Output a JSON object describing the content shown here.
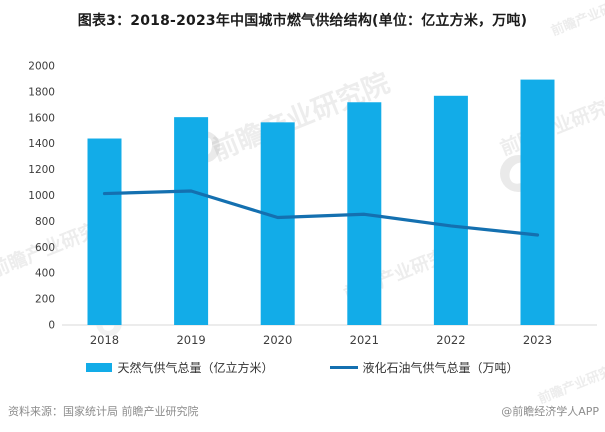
{
  "title": "图表3：2018-2023年中国城市燃气供给结构(单位：亿立方米，万吨)",
  "chart_data": {
    "type": "bar",
    "subtype": "bar-line-combo",
    "categories": [
      "2018",
      "2019",
      "2020",
      "2021",
      "2022",
      "2023"
    ],
    "series": [
      {
        "name": "天然气供气总量（亿立方米）",
        "kind": "bar",
        "color": "#12ACE8",
        "values": [
          1440,
          1605,
          1565,
          1720,
          1770,
          1895
        ]
      },
      {
        "name": "液化石油气供气总量（万吨）",
        "kind": "line",
        "color": "#1470B0",
        "values": [
          1015,
          1035,
          830,
          855,
          765,
          695
        ]
      }
    ],
    "title": "图表3：2018-2023年中国城市燃气供给结构(单位：亿立方米，万吨)",
    "xlabel": "",
    "ylabel": "",
    "ylim": [
      0,
      2000
    ],
    "ytick_step": 200,
    "yticks": [
      "0",
      "200",
      "400",
      "600",
      "800",
      "1000",
      "1200",
      "1400",
      "1600",
      "1800",
      "2000"
    ],
    "grid": false,
    "legend_position": "bottom"
  },
  "legend": {
    "items": [
      {
        "label": "天然气供气总量（亿立方米）",
        "marker": "bar-swatch",
        "color": "#12ACE8"
      },
      {
        "label": "液化石油气供气总量（万吨）",
        "marker": "line-swatch",
        "color": "#1470B0"
      }
    ]
  },
  "footer": {
    "source": "资料来源：国家统计局 前瞻产业研究院",
    "credit": "@前瞻经济学人APP"
  },
  "watermark": {
    "text": "前瞻产业研究院"
  },
  "colors": {
    "bar": "#12ACE8",
    "line": "#1470B0",
    "axis_text": "#3d3d3d",
    "baseline": "#d9d9d9",
    "title_text": "#1b1b1b",
    "footer_text": "#8c8c8c"
  }
}
